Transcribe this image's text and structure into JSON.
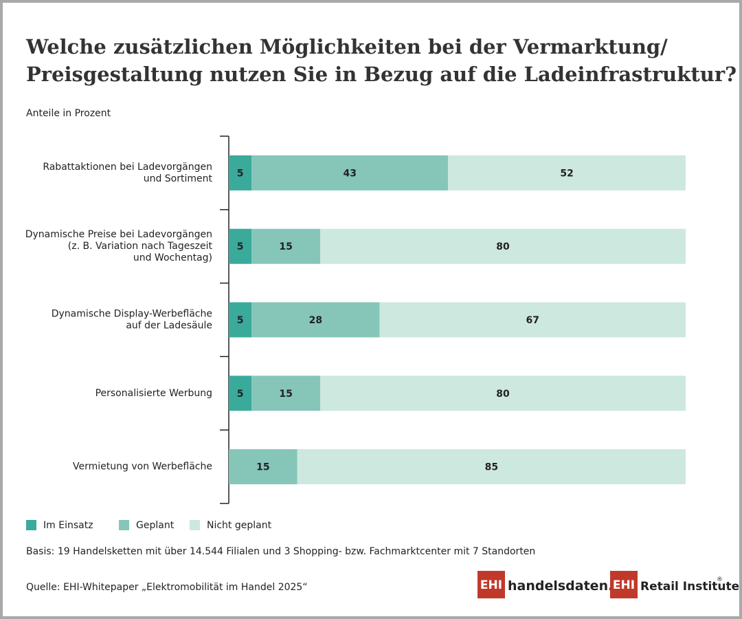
{
  "chart_data": {
    "type": "stacked-bar-horizontal",
    "title": "Welche zusätzlichen Möglichkeiten bei der Vermarktung/\nPreisgestaltung nutzen Sie in Bezug auf die Ladeinfrastruktur?",
    "subtitle": "Anteile in Prozent",
    "categories": [
      "Rabattaktionen bei Ladevorgängen\nund Sortiment",
      "Dynamische Preise bei Ladevorgängen\n(z. B. Variation nach Tageszeit\nund Wochentag)",
      "Dynamische Display-Werbefläche\nauf der Ladesäule",
      "Personalisierte Werbung",
      "Vermietung von Werbefläche"
    ],
    "series": [
      {
        "name": "Im Einsatz",
        "color": "#3aaa9b",
        "values": [
          5,
          5,
          5,
          5,
          null
        ]
      },
      {
        "name": "Geplant",
        "color": "#85c6b9",
        "values": [
          43,
          15,
          28,
          15,
          15
        ]
      },
      {
        "name": "Nicht geplant",
        "color": "#cde8df",
        "values": [
          52,
          80,
          67,
          80,
          85
        ]
      }
    ],
    "xlim": [
      0,
      100
    ],
    "note": "Basis: 19 Handelsketten mit über 14.544 Filialen und 3 Shopping- bzw. Fachmarktcenter mit 7 Standorten",
    "source": "Quelle: EHI-Whitepaper „Elektromobilität im Handel 2025“"
  },
  "branding": {
    "logo_mark": "EHI",
    "sites": [
      "handelsdaten.de",
      "Retail Institute"
    ],
    "registered": "®"
  }
}
